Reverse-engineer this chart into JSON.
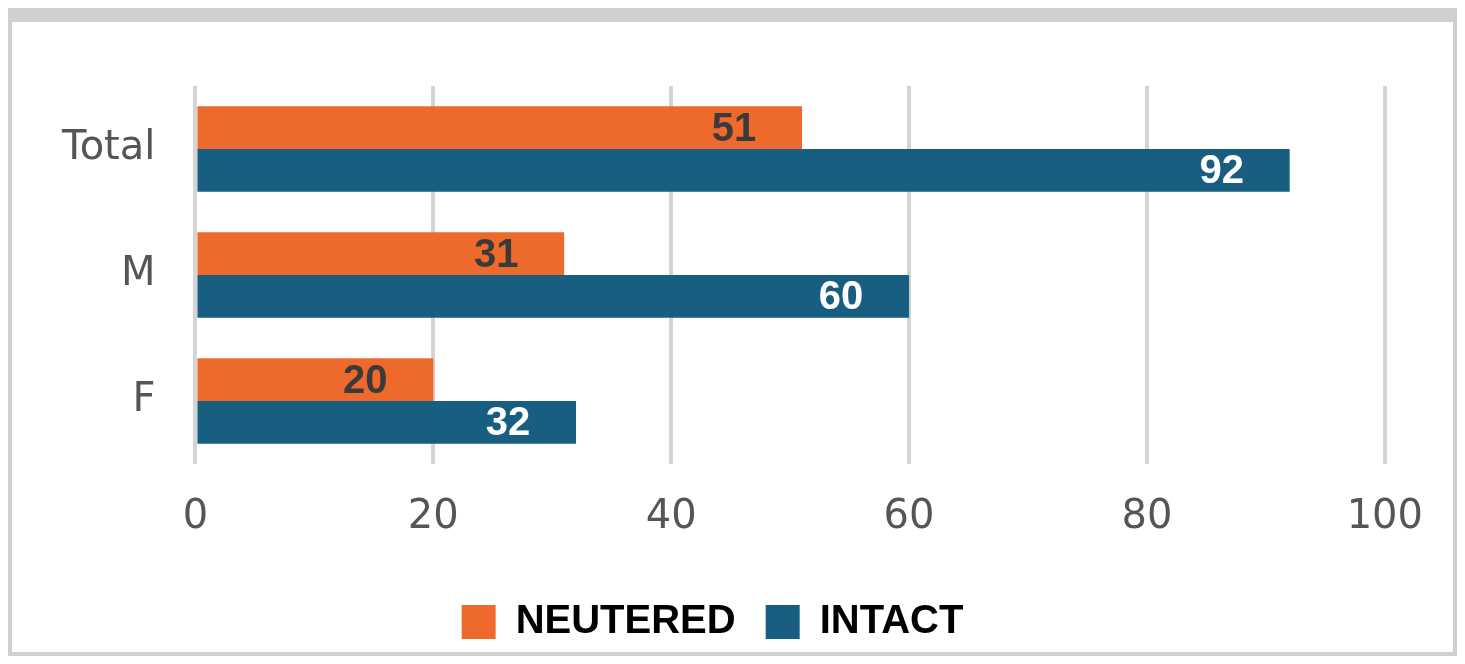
{
  "chart_data": {
    "type": "bar",
    "orientation": "horizontal",
    "categories": [
      "Total",
      "M",
      "F"
    ],
    "series": [
      {
        "name": "NEUTERED",
        "color": "#ee6a2c",
        "values": [
          51,
          31,
          20
        ]
      },
      {
        "name": "INTACT",
        "color": "#175e80",
        "values": [
          92,
          60,
          32
        ]
      }
    ],
    "xlim": [
      0,
      100
    ],
    "xticks": [
      0,
      20,
      40,
      60,
      80,
      100
    ],
    "grid": "x",
    "legend": "bottom",
    "data_labels": true
  }
}
